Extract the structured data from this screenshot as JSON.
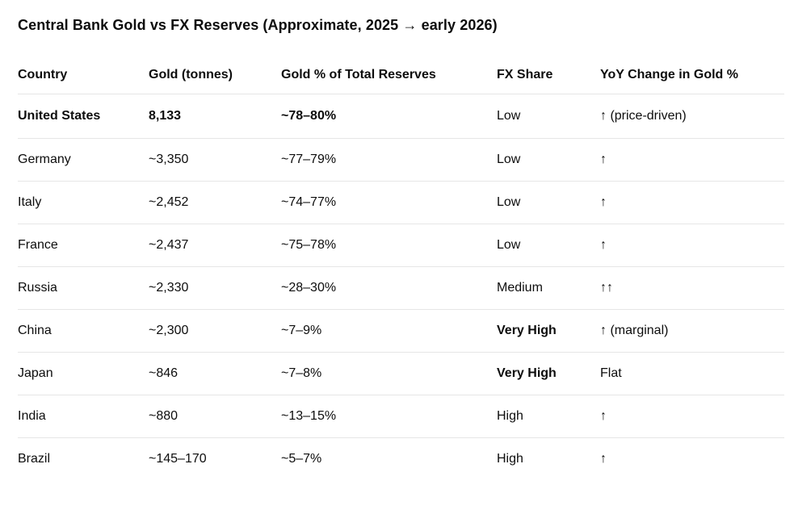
{
  "title": "Central Bank Gold vs FX Reserves (Approximate, 2025 → early 2026)",
  "colors": {
    "text": "#0d0d0d",
    "divider": "#e6e6e6",
    "background": "#ffffff"
  },
  "table": {
    "columns": [
      "Country",
      "Gold (tonnes)",
      "Gold % of Total Reserves",
      "FX Share",
      "YoY Change in Gold %"
    ],
    "column_keys": [
      "country",
      "gold-tonnes",
      "gold-pct-of-reserves",
      "fx-share",
      "yoy-change-in-gold"
    ],
    "rows": [
      {
        "cells": [
          {
            "text": "United States",
            "bold": true
          },
          {
            "text": "8,133",
            "bold": true
          },
          {
            "text": "~78–80%",
            "bold": true
          },
          {
            "text": "Low",
            "bold": false
          },
          {
            "text": "↑ (price-driven)",
            "bold": false
          }
        ]
      },
      {
        "cells": [
          {
            "text": "Germany",
            "bold": false
          },
          {
            "text": "~3,350",
            "bold": false
          },
          {
            "text": "~77–79%",
            "bold": false
          },
          {
            "text": "Low",
            "bold": false
          },
          {
            "text": "↑",
            "bold": false
          }
        ]
      },
      {
        "cells": [
          {
            "text": "Italy",
            "bold": false
          },
          {
            "text": "~2,452",
            "bold": false
          },
          {
            "text": "~74–77%",
            "bold": false
          },
          {
            "text": "Low",
            "bold": false
          },
          {
            "text": "↑",
            "bold": false
          }
        ]
      },
      {
        "cells": [
          {
            "text": "France",
            "bold": false
          },
          {
            "text": "~2,437",
            "bold": false
          },
          {
            "text": "~75–78%",
            "bold": false
          },
          {
            "text": "Low",
            "bold": false
          },
          {
            "text": "↑",
            "bold": false
          }
        ]
      },
      {
        "cells": [
          {
            "text": "Russia",
            "bold": false
          },
          {
            "text": "~2,330",
            "bold": false
          },
          {
            "text": "~28–30%",
            "bold": false
          },
          {
            "text": "Medium",
            "bold": false
          },
          {
            "text": "↑↑",
            "bold": false
          }
        ]
      },
      {
        "cells": [
          {
            "text": "China",
            "bold": false
          },
          {
            "text": "~2,300",
            "bold": false
          },
          {
            "text": "~7–9%",
            "bold": false
          },
          {
            "text": "Very High",
            "bold": true
          },
          {
            "text": "↑ (marginal)",
            "bold": false
          }
        ]
      },
      {
        "cells": [
          {
            "text": "Japan",
            "bold": false
          },
          {
            "text": "~846",
            "bold": false
          },
          {
            "text": "~7–8%",
            "bold": false
          },
          {
            "text": "Very High",
            "bold": true
          },
          {
            "text": "Flat",
            "bold": false
          }
        ]
      },
      {
        "cells": [
          {
            "text": "India",
            "bold": false
          },
          {
            "text": "~880",
            "bold": false
          },
          {
            "text": "~13–15%",
            "bold": false
          },
          {
            "text": "High",
            "bold": false
          },
          {
            "text": "↑",
            "bold": false
          }
        ]
      },
      {
        "cells": [
          {
            "text": "Brazil",
            "bold": false
          },
          {
            "text": "~145–170",
            "bold": false
          },
          {
            "text": "~5–7%",
            "bold": false
          },
          {
            "text": "High",
            "bold": false
          },
          {
            "text": "↑",
            "bold": false
          }
        ]
      }
    ]
  }
}
